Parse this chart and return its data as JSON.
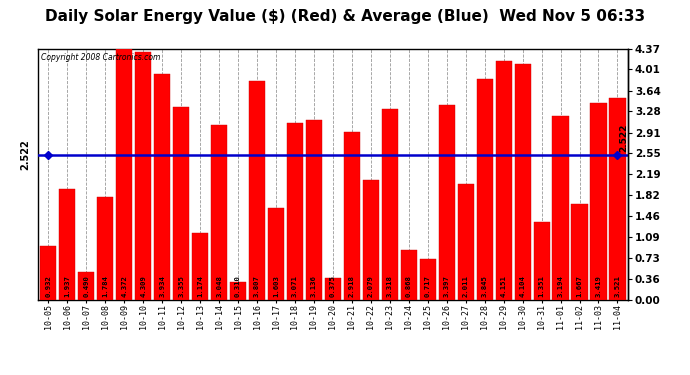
{
  "title": "Daily Solar Energy Value ($) (Red) & Average (Blue)  Wed Nov 5 06:33",
  "copyright": "Copyright 2008 Cartronics.com",
  "categories": [
    "10-05",
    "10-06",
    "10-07",
    "10-08",
    "10-09",
    "10-10",
    "10-11",
    "10-12",
    "10-13",
    "10-14",
    "10-15",
    "10-16",
    "10-17",
    "10-18",
    "10-19",
    "10-20",
    "10-21",
    "10-22",
    "10-23",
    "10-24",
    "10-25",
    "10-26",
    "10-27",
    "10-28",
    "10-29",
    "10-30",
    "10-31",
    "11-01",
    "11-02",
    "11-03",
    "11-04"
  ],
  "values": [
    0.932,
    1.937,
    0.49,
    1.784,
    4.372,
    4.309,
    3.934,
    3.355,
    1.174,
    3.048,
    0.31,
    3.807,
    1.603,
    3.071,
    3.136,
    0.375,
    2.918,
    2.079,
    3.318,
    0.868,
    0.717,
    3.397,
    2.011,
    3.845,
    4.151,
    4.104,
    1.351,
    3.194,
    1.667,
    3.419,
    3.521
  ],
  "average": 2.522,
  "bar_color": "#ff0000",
  "avg_line_color": "#0000cc",
  "background_color": "#ffffff",
  "grid_color": "#999999",
  "title_fontsize": 11,
  "ylim": [
    0,
    4.37
  ],
  "yticks_right": [
    0.0,
    0.36,
    0.73,
    1.09,
    1.46,
    1.82,
    2.19,
    2.55,
    2.91,
    3.28,
    3.64,
    4.01,
    4.37
  ]
}
